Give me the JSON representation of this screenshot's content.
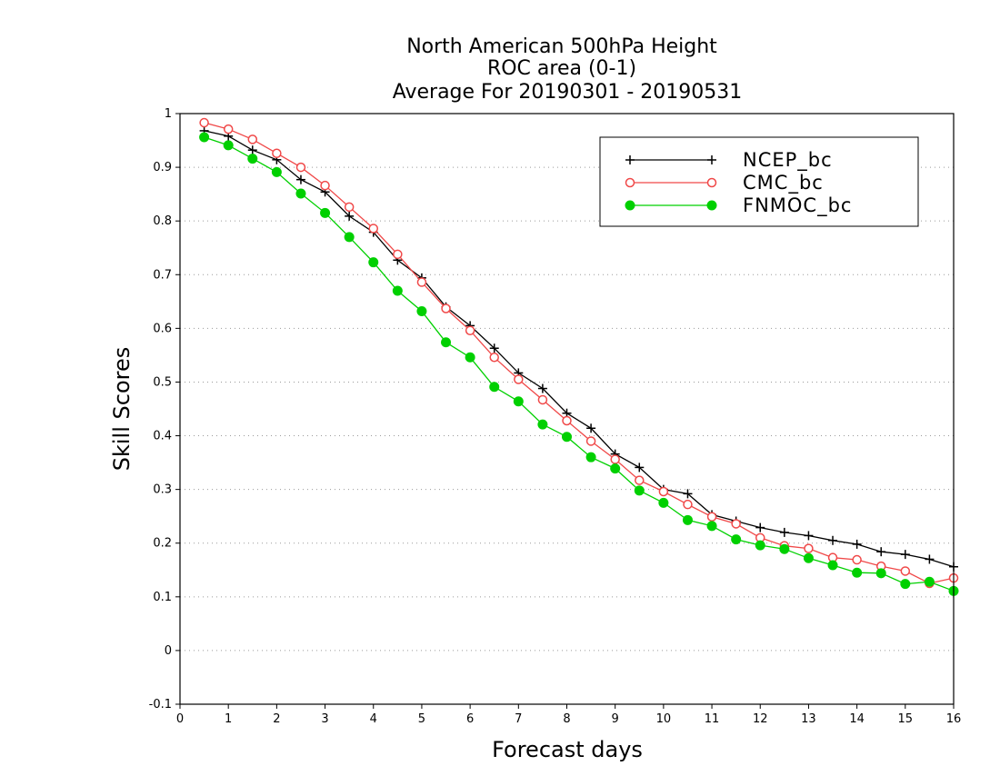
{
  "chart_data": {
    "type": "line",
    "title": [
      "North American 500hPa Height",
      "ROC area (0-1)",
      "Average For 20190301 - 20190531"
    ],
    "xlabel": "Forecast days",
    "ylabel": "Skill Scores",
    "xlim": [
      0,
      16
    ],
    "ylim": [
      -0.1,
      1
    ],
    "xticks": [
      0,
      1,
      2,
      3,
      4,
      5,
      6,
      7,
      8,
      9,
      10,
      11,
      12,
      13,
      14,
      15,
      16
    ],
    "yticks": [
      -0.1,
      0,
      0.1,
      0.2,
      0.3,
      0.4,
      0.5,
      0.6,
      0.7,
      0.8,
      0.9,
      1
    ],
    "ytick_labels": [
      "-0.1",
      "0",
      "0.1",
      "0.2",
      "0.3",
      "0.4",
      "0.5",
      "0.6",
      "0.7",
      "0.8",
      "0.9",
      "1"
    ],
    "grid": "horizontal-dotted",
    "legend_position": "top-right",
    "x": [
      0.5,
      1,
      1.5,
      2,
      2.5,
      3,
      3.5,
      4,
      4.5,
      5,
      5.5,
      6,
      6.5,
      7,
      7.5,
      8,
      8.5,
      9,
      9.5,
      10,
      10.5,
      11,
      11.5,
      12,
      12.5,
      13,
      13.5,
      14,
      14.5,
      15,
      15.5,
      16
    ],
    "series": [
      {
        "name": "NCEP_bc",
        "color": "#000000",
        "marker": "plus",
        "values": [
          0.968,
          0.958,
          0.932,
          0.914,
          0.877,
          0.854,
          0.809,
          0.779,
          0.727,
          0.694,
          0.64,
          0.605,
          0.563,
          0.517,
          0.488,
          0.442,
          0.414,
          0.366,
          0.341,
          0.3,
          0.292,
          0.253,
          0.241,
          0.229,
          0.22,
          0.214,
          0.205,
          0.198,
          0.184,
          0.179,
          0.17,
          0.156
        ]
      },
      {
        "name": "CMC_bc",
        "color": "#f04848",
        "marker": "open-circle",
        "values": [
          0.983,
          0.971,
          0.952,
          0.926,
          0.9,
          0.866,
          0.826,
          0.786,
          0.738,
          0.686,
          0.637,
          0.596,
          0.546,
          0.505,
          0.467,
          0.428,
          0.39,
          0.356,
          0.317,
          0.296,
          0.272,
          0.249,
          0.236,
          0.21,
          0.195,
          0.19,
          0.173,
          0.169,
          0.157,
          0.148,
          0.125,
          0.135
        ]
      },
      {
        "name": "FNMOC_bc",
        "color": "#00d000",
        "marker": "filled-circle",
        "values": [
          0.956,
          0.941,
          0.916,
          0.891,
          0.851,
          0.815,
          0.77,
          0.723,
          0.67,
          0.632,
          0.574,
          0.546,
          0.491,
          0.464,
          0.421,
          0.398,
          0.36,
          0.339,
          0.298,
          0.275,
          0.243,
          0.232,
          0.207,
          0.196,
          0.189,
          0.172,
          0.159,
          0.145,
          0.144,
          0.124,
          0.128,
          0.111
        ]
      }
    ]
  }
}
